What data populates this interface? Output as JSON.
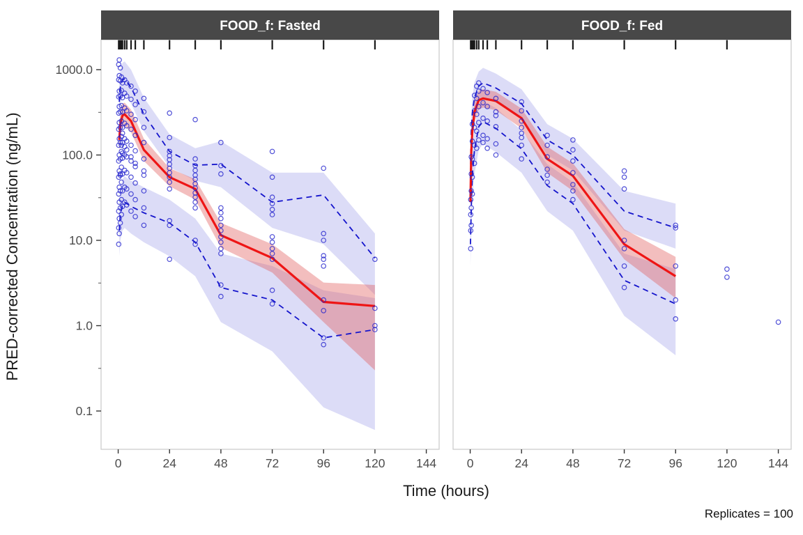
{
  "chart_data": {
    "type": "scatter",
    "title": "",
    "xlabel": "Time (hours)",
    "ylabel": "PRED-corrected Concentration (ng/mL)",
    "note": "Replicates = 100",
    "x_ticks": [
      0,
      24,
      48,
      72,
      96,
      120,
      144
    ],
    "y_ticks": [
      1000,
      100,
      10,
      1,
      0.1
    ],
    "y_tick_labels": [
      "1000.0",
      "100.0",
      "10.0",
      "1.0",
      "0.1"
    ],
    "y_minor_ticks": [
      316,
      31.6,
      3.16,
      0.316
    ],
    "xlim": [
      -8,
      150
    ],
    "grid": false,
    "legend": "none",
    "colors": {
      "median": "#ee1515",
      "median_band": "#e05c5c",
      "percentile": "#1414cc",
      "percentile_band": "#9a9ae8",
      "points": "#2424cd",
      "strip_bg": "#484848",
      "strip_text": "#ffffff",
      "axis_text": "#4d4d4d",
      "panel_border": "#c9c9c9",
      "rug": "#1a1a1a"
    },
    "facets": [
      {
        "label": "FOOD_f: Fasted",
        "rug_times": [
          0.25,
          0.5,
          1,
          1.5,
          2,
          3,
          4,
          6,
          8,
          12,
          24,
          36,
          48,
          72,
          96,
          120
        ],
        "median": {
          "t": [
            0.5,
            1,
            2,
            3,
            6,
            12,
            24,
            36,
            48,
            72,
            96,
            120
          ],
          "y": [
            150,
            230,
            290,
            300,
            250,
            115,
            55,
            40,
            11.5,
            6.2,
            1.9,
            1.7
          ]
        },
        "median_band": {
          "t": [
            0.5,
            1,
            2,
            3,
            6,
            12,
            24,
            36,
            48,
            72,
            96,
            120
          ],
          "lo": [
            105,
            165,
            210,
            220,
            185,
            85,
            43,
            30,
            8.2,
            4.2,
            1.1,
            0.3
          ],
          "hi": [
            210,
            320,
            400,
            410,
            340,
            155,
            70,
            52,
            16,
            9,
            3.2,
            3.0
          ]
        },
        "p95": {
          "t": [
            0.5,
            1,
            2,
            3,
            6,
            12,
            24,
            36,
            48,
            72,
            96,
            120
          ],
          "y": [
            420,
            620,
            760,
            780,
            620,
            300,
            110,
            76,
            78,
            28,
            34,
            6.2
          ]
        },
        "p95_band": {
          "t": [
            0.5,
            1,
            2,
            3,
            6,
            12,
            24,
            36,
            48,
            72,
            96,
            120
          ],
          "lo": [
            260,
            400,
            500,
            520,
            400,
            190,
            72,
            50,
            42,
            14,
            9,
            2.3
          ],
          "hi": [
            680,
            1000,
            1200,
            1250,
            1000,
            470,
            175,
            120,
            145,
            62,
            62,
            12
          ]
        },
        "p5": {
          "t": [
            0.5,
            1,
            2,
            3,
            6,
            12,
            24,
            36,
            48,
            72,
            96,
            120
          ],
          "y": [
            13,
            20,
            26,
            28,
            25,
            21,
            16,
            9.5,
            2.8,
            2.0,
            0.72,
            0.9
          ]
        },
        "p5_band": {
          "t": [
            0.5,
            1,
            2,
            3,
            6,
            12,
            24,
            36,
            48,
            72,
            96,
            120
          ],
          "lo": [
            6.5,
            10,
            13,
            14,
            12,
            9.5,
            6.5,
            3.8,
            1.1,
            0.5,
            0.11,
            0.06
          ],
          "hi": [
            26,
            40,
            52,
            56,
            50,
            42,
            30,
            18,
            7,
            5,
            2.6,
            2.1
          ]
        },
        "points": [
          {
            "t": 0.25,
            "y": [
              9,
              14,
              22,
              35,
              55,
              85,
              130,
              200,
              310,
              480,
              760,
              1150
            ]
          },
          {
            "t": 0.5,
            "y": [
              12,
              18,
              28,
              42,
              65,
              100,
              155,
              240,
              370,
              560,
              850,
              1300
            ]
          },
          {
            "t": 1,
            "y": [
              16,
              24,
              38,
              58,
              90,
              140,
              210,
              320,
              490,
              740,
              1050,
              60
            ]
          },
          {
            "t": 1.5,
            "y": [
              20,
              30,
              48,
              72,
              110,
              165,
              250,
              380,
              570,
              820,
              130
            ]
          },
          {
            "t": 2,
            "y": [
              25,
              38,
              60,
              92,
              140,
              210,
              320,
              470,
              700,
              180,
              105
            ]
          },
          {
            "t": 3,
            "y": [
              28,
              42,
              66,
              100,
              155,
              235,
              355,
              530,
              760,
              125
            ]
          },
          {
            "t": 4,
            "y": [
              26,
              40,
              62,
              95,
              145,
              220,
              330,
              490,
              700,
              115
            ]
          },
          {
            "t": 6,
            "y": [
              22,
              35,
              55,
              85,
              130,
              200,
              300,
              450,
              640,
              95
            ]
          },
          {
            "t": 8,
            "y": [
              19,
              30,
              47,
              73,
              112,
              170,
              260,
              390,
              560,
              80
            ]
          },
          {
            "t": 12,
            "y": [
              15,
              24,
              38,
              58,
              90,
              140,
              210,
              320,
              460,
              65
            ]
          },
          {
            "t": 24,
            "y": [
              6,
              15,
              17,
              40,
              48,
              55,
              62,
              70,
              78,
              88,
              98,
              110,
              160,
              310
            ]
          },
          {
            "t": 36,
            "y": [
              9,
              10,
              24,
              28,
              32,
              36,
              41,
              46,
              52,
              58,
              66,
              75,
              90,
              260
            ]
          },
          {
            "t": 48,
            "y": [
              2.2,
              3.0,
              7,
              8,
              9.5,
              11,
              13,
              15,
              18,
              21,
              24,
              60,
              75,
              140
            ]
          },
          {
            "t": 72,
            "y": [
              1.8,
              2.6,
              6,
              7,
              8,
              9.5,
              11,
              20,
              23,
              27,
              32,
              55,
              110
            ]
          },
          {
            "t": 96,
            "y": [
              0.6,
              0.72,
              1.5,
              2.0,
              5,
              6,
              6.6,
              10,
              12,
              70
            ]
          },
          {
            "t": 120,
            "y": [
              0.9,
              1.0,
              1.6,
              6.0
            ]
          }
        ]
      },
      {
        "label": "FOOD_f: Fed",
        "rug_times": [
          0.25,
          0.5,
          1,
          1.5,
          2,
          3,
          4,
          6,
          8,
          12,
          24,
          36,
          48,
          72,
          96,
          120
        ],
        "median": {
          "t": [
            0.1,
            0.5,
            1,
            2,
            4,
            6,
            12,
            24,
            36,
            48,
            72,
            96
          ],
          "y": [
            28,
            110,
            190,
            320,
            440,
            460,
            430,
            270,
            90,
            57,
            9,
            3.8
          ]
        },
        "median_band": {
          "t": [
            0.1,
            0.5,
            1,
            2,
            4,
            6,
            12,
            24,
            36,
            48,
            72,
            96
          ],
          "lo": [
            18,
            80,
            140,
            240,
            340,
            360,
            335,
            205,
            62,
            38,
            6,
            2.1
          ],
          "hi": [
            42,
            155,
            260,
            430,
            570,
            590,
            550,
            350,
            125,
            80,
            13.5,
            6.4
          ]
        },
        "p95": {
          "t": [
            0.1,
            0.5,
            1,
            2,
            4,
            6,
            12,
            24,
            36,
            48,
            72,
            96
          ],
          "y": [
            60,
            190,
            310,
            470,
            640,
            700,
            610,
            400,
            150,
            100,
            22,
            14
          ]
        },
        "p95_band": {
          "t": [
            0.1,
            0.5,
            1,
            2,
            4,
            6,
            12,
            24,
            36,
            48,
            72,
            96
          ],
          "lo": [
            40,
            125,
            205,
            310,
            430,
            470,
            410,
            270,
            100,
            66,
            13,
            8
          ],
          "hi": [
            90,
            290,
            470,
            710,
            950,
            1050,
            900,
            590,
            230,
            155,
            38,
            27
          ]
        },
        "p5": {
          "t": [
            0.1,
            0.5,
            1,
            2,
            4,
            6,
            12,
            24,
            36,
            48,
            72,
            96
          ],
          "y": [
            9,
            24,
            58,
            115,
            215,
            245,
            205,
            118,
            44,
            27,
            3.4,
            1.8
          ]
        },
        "p5_band": {
          "t": [
            0.1,
            0.5,
            1,
            2,
            4,
            6,
            12,
            24,
            36,
            48,
            72,
            96
          ],
          "lo": [
            5,
            12,
            30,
            60,
            115,
            135,
            108,
            62,
            22,
            13,
            1.3,
            0.45
          ],
          "hi": [
            18,
            48,
            110,
            215,
            390,
            430,
            355,
            195,
            78,
            48,
            7,
            4.6
          ]
        },
        "points": [
          {
            "t": 0.25,
            "y": [
              8,
              13,
              20,
              30
            ]
          },
          {
            "t": 0.5,
            "y": [
              15,
              24,
              38,
              60,
              95
            ]
          },
          {
            "t": 1,
            "y": [
              35,
              55,
              90,
              145,
              230
            ]
          },
          {
            "t": 2,
            "y": [
              80,
              130,
              210,
              330,
              500
            ]
          },
          {
            "t": 3,
            "y": [
              120,
              190,
              300,
              460,
              640
            ]
          },
          {
            "t": 4,
            "y": [
              150,
              240,
              370,
              560,
              700
            ]
          },
          {
            "t": 6,
            "y": [
              170,
              270,
              410,
              600,
              140
            ]
          },
          {
            "t": 8,
            "y": [
              155,
              250,
              370,
              540,
              120
            ]
          },
          {
            "t": 12,
            "y": [
              135,
              215,
              320,
              460,
              100,
              290
            ]
          },
          {
            "t": 24,
            "y": [
              90,
              130,
              180,
              250,
              330,
              420,
              160,
              210
            ]
          },
          {
            "t": 36,
            "y": [
              48,
              68,
              95,
              130,
              170,
              58
            ]
          },
          {
            "t": 48,
            "y": [
              30,
              45,
              62,
              85,
              115,
              150,
              38
            ]
          },
          {
            "t": 72,
            "y": [
              2.8,
              5,
              8,
              10,
              40,
              55,
              65
            ]
          },
          {
            "t": 96,
            "y": [
              1.2,
              2.0,
              5,
              14,
              15
            ]
          },
          {
            "t": 120,
            "y": [
              3.7,
              4.6
            ]
          },
          {
            "t": 144,
            "y": [
              1.1
            ]
          }
        ]
      }
    ]
  }
}
